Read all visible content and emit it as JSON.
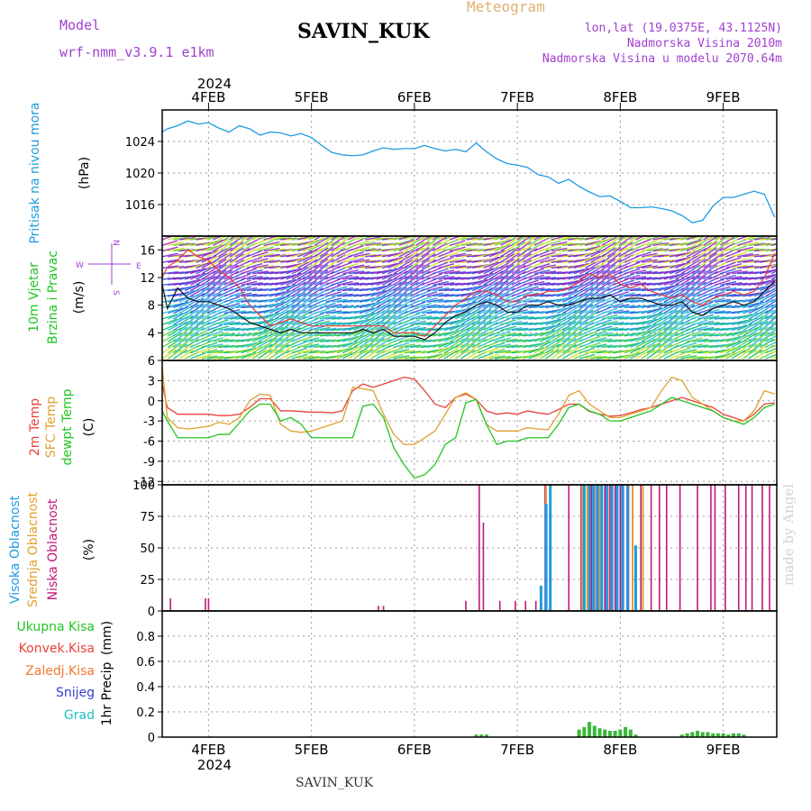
{
  "header": {
    "model_label": "Model",
    "model_name": "wrf-nmm_v3.9.1 e1km",
    "station": "SAVIN_KUK",
    "product": "Meteogram",
    "lonlat": "lon,lat (19.0375E, 43.1125N)",
    "elevation": "Nadmorska Visina 2010m",
    "model_elevation": "Nadmorska Visina u modelu 2070.64m",
    "footer_station": "SAVIN_KUK",
    "watermark": "made by Angel"
  },
  "time_axis": {
    "year": "2024",
    "labels": [
      "4FEB",
      "5FEB",
      "6FEB",
      "7FEB",
      "8FEB",
      "9FEB"
    ]
  },
  "colors": {
    "pressure": "#1e9be0",
    "temp2m": "#e8423a",
    "sfc_temp": "#e0a030",
    "dewpoint": "#22c422",
    "wind_speed": "#111111",
    "wind_gust": "#e83a3a",
    "high_cloud": "#1e9be0",
    "mid_cloud": "#e0a030",
    "low_cloud": "#c0187a",
    "rain": "#3ab83a",
    "conv_rain": "#e83a3a",
    "snow": "#3040d0"
  },
  "chart_data": [
    {
      "type": "line",
      "panel": "pressure",
      "ylabel_1": "Pritisak na nivou mora",
      "ylabel_2": "(hPa)",
      "ylim": [
        1012,
        1028
      ],
      "yticks": [
        1016,
        1020,
        1024
      ],
      "grid": true,
      "x_days": [
        3.55,
        3.6,
        3.7,
        3.8,
        3.9,
        4.0,
        4.1,
        4.2,
        4.3,
        4.4,
        4.5,
        4.6,
        4.7,
        4.8,
        4.9,
        5.0,
        5.1,
        5.2,
        5.3,
        5.4,
        5.5,
        5.6,
        5.7,
        5.8,
        5.9,
        6.0,
        6.1,
        6.2,
        6.3,
        6.4,
        6.5,
        6.6,
        6.7,
        6.8,
        6.9,
        7.0,
        7.1,
        7.2,
        7.3,
        7.4,
        7.5,
        7.6,
        7.7,
        7.8,
        7.9,
        8.0,
        8.1,
        8.2,
        8.3,
        8.4,
        8.5,
        8.6,
        8.7,
        8.8,
        8.9,
        9.0,
        9.1,
        9.2,
        9.3,
        9.4,
        9.5
      ],
      "series": [
        {
          "values": [
            1025.2,
            1025.6,
            1026.0,
            1026.6,
            1026.2,
            1026.4,
            1025.7,
            1025.2,
            1026.0,
            1025.6,
            1024.8,
            1025.2,
            1025.1,
            1024.7,
            1025.0,
            1024.5,
            1023.5,
            1022.6,
            1022.3,
            1022.2,
            1022.3,
            1022.8,
            1023.2,
            1023.0,
            1023.1,
            1023.1,
            1023.5,
            1023.1,
            1022.8,
            1023.0,
            1022.7,
            1023.8,
            1022.7,
            1021.8,
            1021.2,
            1021.0,
            1020.7,
            1019.8,
            1019.5,
            1018.7,
            1019.2,
            1018.3,
            1017.6,
            1017.0,
            1017.1,
            1016.4,
            1015.6,
            1015.6,
            1015.7,
            1015.5,
            1015.2,
            1014.6,
            1013.7,
            1014.0,
            1015.8,
            1016.9,
            1016.9,
            1017.3,
            1017.7,
            1017.3,
            1014.4
          ]
        }
      ]
    },
    {
      "type": "line",
      "panel": "wind",
      "ylabel_1": "10m Vjetar",
      "ylabel_2": "Brzina i Pravac",
      "ylabel_3": "(m/s)",
      "compass_labels": [
        "W",
        "E",
        "N",
        "S"
      ],
      "ylim": [
        0,
        18
      ],
      "yticks": [
        4,
        8,
        12,
        16
      ],
      "grid": true,
      "x_days": [
        3.55,
        3.6,
        3.7,
        3.8,
        3.9,
        4.0,
        4.1,
        4.2,
        4.3,
        4.4,
        4.5,
        4.6,
        4.7,
        4.8,
        4.9,
        5.0,
        5.1,
        5.2,
        5.3,
        5.4,
        5.5,
        5.6,
        5.7,
        5.8,
        5.9,
        6.0,
        6.1,
        6.2,
        6.3,
        6.4,
        6.5,
        6.6,
        6.7,
        6.8,
        6.9,
        7.0,
        7.1,
        7.2,
        7.3,
        7.4,
        7.5,
        7.6,
        7.7,
        7.8,
        7.9,
        8.0,
        8.1,
        8.2,
        8.3,
        8.4,
        8.5,
        8.6,
        8.7,
        8.8,
        8.9,
        9.0,
        9.1,
        9.2,
        9.3,
        9.4,
        9.5
      ],
      "series": [
        {
          "name_key": "speed",
          "values": [
            11,
            7.5,
            10.5,
            9,
            8.5,
            8.5,
            8,
            7.5,
            6.5,
            5.5,
            5,
            4.5,
            4,
            4.5,
            4,
            4,
            4,
            4,
            4,
            4,
            4.5,
            4,
            4.5,
            3.5,
            3.5,
            3.5,
            3,
            4,
            5.5,
            6.5,
            7,
            8,
            8.5,
            8,
            7,
            7,
            8,
            8,
            8.5,
            8,
            8,
            8.5,
            9,
            9,
            9.5,
            8.5,
            9,
            9,
            8.5,
            8,
            8,
            8.5,
            7,
            6.5,
            7.5,
            8,
            8.5,
            8,
            8.5,
            10,
            11.5
          ]
        },
        {
          "name_key": "gust",
          "values": [
            12,
            13.5,
            14.5,
            16,
            15,
            14.5,
            13,
            12,
            10.5,
            8,
            6.5,
            5,
            5.5,
            6,
            5.5,
            5,
            5,
            5,
            5,
            5,
            5,
            5,
            5,
            4,
            4,
            4,
            3.5,
            5,
            6.5,
            8,
            9,
            10,
            10,
            9.5,
            8.5,
            8.5,
            9.5,
            9.5,
            10,
            10,
            10.5,
            11.5,
            12.5,
            12,
            12.5,
            11,
            10.5,
            11,
            10,
            9.5,
            9,
            9.5,
            8.5,
            8,
            9,
            9.5,
            10,
            9.5,
            10,
            12,
            15.5
          ]
        }
      ]
    },
    {
      "type": "line",
      "panel": "temperature",
      "ylabel_1": "2m Temp",
      "ylabel_2": "SFC Temp",
      "ylabel_3": "dewpt Temp",
      "ylabel_4": "(C)",
      "ylim": [
        -12.5,
        6
      ],
      "yticks": [
        -12,
        -9,
        -6,
        -3,
        0,
        3,
        6
      ],
      "grid": true,
      "x_days": [
        3.55,
        3.6,
        3.7,
        3.8,
        3.9,
        4.0,
        4.1,
        4.2,
        4.3,
        4.4,
        4.5,
        4.6,
        4.7,
        4.8,
        4.9,
        5.0,
        5.1,
        5.2,
        5.3,
        5.4,
        5.5,
        5.6,
        5.7,
        5.8,
        5.9,
        6.0,
        6.1,
        6.2,
        6.3,
        6.4,
        6.5,
        6.6,
        6.7,
        6.8,
        6.9,
        7.0,
        7.1,
        7.2,
        7.3,
        7.4,
        7.5,
        7.6,
        7.7,
        7.8,
        7.9,
        8.0,
        8.1,
        8.2,
        8.3,
        8.4,
        8.5,
        8.6,
        8.7,
        8.8,
        8.9,
        9.0,
        9.1,
        9.2,
        9.3,
        9.4,
        9.5
      ],
      "series": [
        {
          "name_key": "temp2m",
          "values": [
            2.5,
            -1,
            -2,
            -2,
            -2,
            -2,
            -2.2,
            -2.2,
            -2,
            -1,
            0.3,
            0.3,
            -1.5,
            -1.5,
            -1.6,
            -1.7,
            -1.7,
            -1.8,
            -1.5,
            1.5,
            2.5,
            2.0,
            2.5,
            3.0,
            3.5,
            3.2,
            1.5,
            -0.5,
            -1,
            0.5,
            1.0,
            0.2,
            -1.5,
            -2.0,
            -1.8,
            -2.0,
            -1.5,
            -1.8,
            -2.0,
            -1.3,
            -0.5,
            -0.5,
            -1.6,
            -2.0,
            -2.3,
            -2.2,
            -1.8,
            -1.3,
            -1.0,
            -0.5,
            0,
            0.5,
            0,
            -0.5,
            -1.0,
            -2.0,
            -2.5,
            -3,
            -2,
            -0.5,
            -0.3
          ]
        },
        {
          "name_key": "sfc_temp",
          "values": [
            5,
            -2.5,
            -4,
            -4.2,
            -4,
            -3.8,
            -3.2,
            -3.5,
            -2.5,
            0,
            1.0,
            0.8,
            -3.5,
            -4.5,
            -4.7,
            -4.5,
            -4.0,
            -3.5,
            -3.0,
            2.0,
            1.8,
            1.5,
            -2.0,
            -5.0,
            -6.5,
            -6.5,
            -5.5,
            -4.5,
            -2.0,
            0.5,
            1.2,
            0.2,
            -3.5,
            -4.5,
            -4.5,
            -4.5,
            -4.0,
            -4.2,
            -4.3,
            -2.0,
            0.8,
            1.5,
            -0.5,
            -1.5,
            -2.5,
            -2.5,
            -2.0,
            -1.5,
            -1.0,
            1.5,
            3.5,
            3.0,
            0.5,
            -0.5,
            -1.5,
            -2.5,
            -3.0,
            -3.0,
            -1.5,
            1.5,
            1.0
          ]
        },
        {
          "name_key": "dewpoint",
          "values": [
            -1.5,
            -3,
            -5.5,
            -5.5,
            -5.5,
            -5.5,
            -5,
            -5,
            -3.3,
            -1.5,
            -0.5,
            -0.5,
            -3,
            -2.5,
            -3.5,
            -5.5,
            -5.5,
            -5.5,
            -5.5,
            -5.5,
            -0.8,
            -0.5,
            -2.5,
            -7.0,
            -9.5,
            -11.5,
            -11.0,
            -9.5,
            -6.5,
            -5.5,
            -0.3,
            0.2,
            -3.5,
            -6.5,
            -6.0,
            -6.0,
            -5.5,
            -5.5,
            -5.5,
            -3.5,
            -1.0,
            -0.5,
            -1.5,
            -2.0,
            -3.0,
            -3.0,
            -2.5,
            -2.0,
            -1.5,
            -0.5,
            0.5,
            0,
            -0.5,
            -1.0,
            -1.5,
            -2.5,
            -3.0,
            -3.5,
            -2.5,
            -1.0,
            -0.5
          ]
        }
      ]
    },
    {
      "type": "bar",
      "panel": "cloud",
      "ylabel_1": "Visoka Oblacnost",
      "ylabel_2": "Srednja Oblacnost",
      "ylabel_3": "Niska Oblacnost",
      "ylabel_4": "(%)",
      "ylim": [
        0,
        100
      ],
      "yticks": [
        0,
        25,
        50,
        75,
        100
      ],
      "grid": true,
      "series": [
        {
          "name_key": "low",
          "points": [
            [
              3.63,
              10
            ],
            [
              3.97,
              10
            ],
            [
              4.0,
              10
            ],
            [
              5.65,
              4
            ],
            [
              5.7,
              4
            ],
            [
              6.5,
              8
            ],
            [
              6.63,
              100
            ],
            [
              6.67,
              70
            ],
            [
              6.83,
              8
            ],
            [
              6.98,
              8
            ],
            [
              7.08,
              8
            ],
            [
              7.18,
              8
            ],
            [
              7.27,
              100
            ],
            [
              7.5,
              100
            ],
            [
              7.62,
              100
            ],
            [
              7.72,
              100
            ],
            [
              7.77,
              100
            ],
            [
              7.85,
              100
            ],
            [
              7.9,
              100
            ],
            [
              7.95,
              100
            ],
            [
              8.0,
              100
            ],
            [
              8.03,
              100
            ],
            [
              8.08,
              100
            ],
            [
              8.12,
              100
            ],
            [
              8.2,
              100
            ],
            [
              8.3,
              100
            ],
            [
              8.38,
              100
            ],
            [
              8.45,
              100
            ],
            [
              8.58,
              100
            ],
            [
              8.75,
              100
            ],
            [
              8.88,
              100
            ],
            [
              8.92,
              100
            ],
            [
              9.02,
              100
            ],
            [
              9.15,
              100
            ],
            [
              9.22,
              100
            ],
            [
              9.28,
              100
            ],
            [
              9.38,
              100
            ],
            [
              9.45,
              100
            ]
          ]
        },
        {
          "name_key": "mid",
          "points": [
            [
              7.28,
              100
            ],
            [
              7.63,
              100
            ],
            [
              7.68,
              100
            ],
            [
              7.75,
              100
            ],
            [
              7.8,
              100
            ],
            [
              7.88,
              100
            ],
            [
              7.97,
              100
            ],
            [
              8.02,
              100
            ],
            [
              8.07,
              100
            ],
            [
              8.12,
              100
            ],
            [
              8.22,
              100
            ]
          ]
        },
        {
          "name_key": "high",
          "points": [
            [
              7.23,
              20
            ],
            [
              7.28,
              85
            ],
            [
              7.32,
              100
            ],
            [
              7.65,
              100
            ],
            [
              7.7,
              100
            ],
            [
              7.74,
              100
            ],
            [
              7.78,
              100
            ],
            [
              7.82,
              100
            ],
            [
              7.87,
              100
            ],
            [
              7.92,
              100
            ],
            [
              7.97,
              100
            ],
            [
              8.02,
              100
            ],
            [
              8.07,
              100
            ],
            [
              8.15,
              52
            ]
          ]
        }
      ]
    },
    {
      "type": "bar",
      "panel": "precipitation",
      "legend": [
        "Ukupna Kisa",
        "Konvek.Kisa",
        "Zaledj.Kisa",
        "Snijeg",
        "Grad"
      ],
      "ylabel_1": "1hr Precip",
      "ylabel_2": "(mm)",
      "ylim": [
        0,
        1
      ],
      "yticks": [
        0,
        0.2,
        0.4,
        0.6,
        0.8
      ],
      "grid": true,
      "series": [
        {
          "name_key": "total",
          "points": [
            [
              6.6,
              0.02
            ],
            [
              6.65,
              0.02
            ],
            [
              6.7,
              0.02
            ],
            [
              7.6,
              0.06
            ],
            [
              7.65,
              0.08
            ],
            [
              7.7,
              0.12
            ],
            [
              7.75,
              0.09
            ],
            [
              7.8,
              0.07
            ],
            [
              7.85,
              0.06
            ],
            [
              7.9,
              0.05
            ],
            [
              7.95,
              0.05
            ],
            [
              8.0,
              0.06
            ],
            [
              8.05,
              0.08
            ],
            [
              8.1,
              0.06
            ],
            [
              8.15,
              0.02
            ],
            [
              8.6,
              0.02
            ],
            [
              8.65,
              0.03
            ],
            [
              8.7,
              0.04
            ],
            [
              8.75,
              0.05
            ],
            [
              8.8,
              0.04
            ],
            [
              8.85,
              0.04
            ],
            [
              8.9,
              0.03
            ],
            [
              8.95,
              0.03
            ],
            [
              9.0,
              0.03
            ],
            [
              9.05,
              0.02
            ],
            [
              9.1,
              0.03
            ],
            [
              9.15,
              0.03
            ],
            [
              9.2,
              0.02
            ]
          ]
        }
      ]
    }
  ]
}
